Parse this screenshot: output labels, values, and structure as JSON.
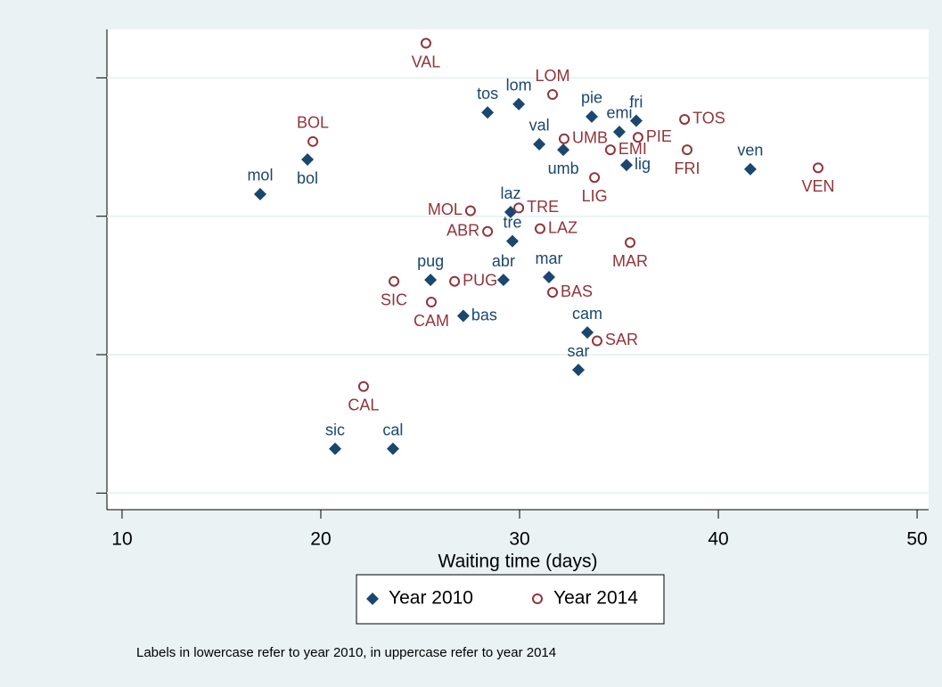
{
  "chart_data": {
    "type": "scatter",
    "xlabel": "Waiting time (days)",
    "note": "Labels in lowercase refer to year 2010, in uppercase refer to year 2014",
    "xlim": [
      9.24,
      50.58
    ],
    "xticks": [
      10,
      20,
      30,
      40,
      50
    ],
    "ylim": [
      -0.12,
      3.35
    ],
    "yticks": [
      0,
      1,
      2,
      3
    ],
    "grid": true,
    "series": [
      {
        "name": "Year 2010",
        "color": "#1a476f",
        "marker": "diamond",
        "labels": [
          "tos",
          "lom",
          "pie",
          "fri",
          "emi",
          "val",
          "umb",
          "lig",
          "ven",
          "mol",
          "bol",
          "laz",
          "tre",
          "pug",
          "abr",
          "mar",
          "bas",
          "cam",
          "sar",
          "sic",
          "cal"
        ],
        "x": [
          28.39,
          29.96,
          33.63,
          35.87,
          35.02,
          30.99,
          32.2,
          35.38,
          41.61,
          16.95,
          19.33,
          29.55,
          29.64,
          25.52,
          29.19,
          31.48,
          27.17,
          33.41,
          32.96,
          20.72,
          23.63
        ],
        "values": [
          2.75,
          2.81,
          2.72,
          2.69,
          2.61,
          2.52,
          2.48,
          2.37,
          2.34,
          2.16,
          2.41,
          2.03,
          1.82,
          1.54,
          1.54,
          1.56,
          1.28,
          1.16,
          0.89,
          0.32,
          0.32
        ]
      },
      {
        "name": "Year 2014",
        "color": "#90353b",
        "marker": "circle",
        "labels": [
          "VAL",
          "LOM",
          "TOS",
          "BOL",
          "UMB",
          "PIE",
          "EMI",
          "FRI",
          "VEN",
          "LIG",
          "MOL",
          "TRE",
          "ABR",
          "LAZ",
          "MAR",
          "SIC",
          "PUG",
          "BAS",
          "CAM",
          "SAR",
          "CAL"
        ],
        "x": [
          25.29,
          31.66,
          38.3,
          19.6,
          32.24,
          35.96,
          34.57,
          38.43,
          45.02,
          33.77,
          27.53,
          29.96,
          28.39,
          31.03,
          35.56,
          23.68,
          26.73,
          31.66,
          25.56,
          33.9,
          22.15
        ],
        "values": [
          3.25,
          2.88,
          2.7,
          2.54,
          2.56,
          2.57,
          2.48,
          2.48,
          2.35,
          2.28,
          2.04,
          2.06,
          1.89,
          1.91,
          1.81,
          1.53,
          1.53,
          1.45,
          1.38,
          1.1,
          0.77
        ]
      }
    ]
  }
}
